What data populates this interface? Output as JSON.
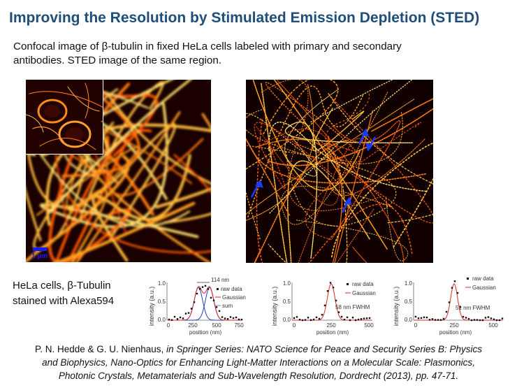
{
  "title": "Improving the Resolution by Stimulated Emission Depletion (STED)",
  "intro": {
    "line1": "Confocal image of β-tubulin in fixed HeLa cells labeled with primary and secondary",
    "line2": "antibodies. STED image of the same region."
  },
  "scale_bar_label": "1 µm",
  "caption": {
    "line1": "HeLa cells, β-Tubulin",
    "line2": "stained with Alexa594"
  },
  "plots": [
    {
      "ylabel": "intensity (a.u.)",
      "xlabel": "position (nm)",
      "xticks": [
        "0",
        "250",
        "500",
        "750"
      ],
      "yticks": [
        "0.0",
        "0.5",
        "1.0"
      ],
      "legend": [
        "raw data",
        "Gaussian",
        "sum"
      ],
      "annotation": "114 nm"
    },
    {
      "ylabel": "intensity (a.u.)",
      "xlabel": "position (nm)",
      "xticks": [
        "0",
        "250",
        "500"
      ],
      "yticks": [
        "0.0",
        "0.5",
        "1.0"
      ],
      "legend": [
        "raw data",
        "Gaussian"
      ],
      "annotation": "58 nm FWHM"
    },
    {
      "ylabel": "intensity (a.u.)",
      "xlabel": "position (nm)",
      "xticks": [
        "0",
        "250",
        "500"
      ],
      "yticks": [
        "0.0",
        "0.5",
        "1.0"
      ],
      "legend": [
        "raw data",
        "Gaussian"
      ],
      "annotation": "51 nm FWHM"
    }
  ],
  "colors": {
    "title": "#1f4e79",
    "raw": "#111111",
    "gaussian_red": "#d62728",
    "gaussian_blue": "#1f3fbf",
    "sum": "#7a7aff",
    "arrow": "#1a3cff"
  },
  "reference": {
    "authors": "P. N. Hedde & G. U. Nienhaus,",
    "line1_rest": "in Springer Series: NATO Science for Peace and Security Series B: Physics",
    "line2": "and Biophysics, Nano-Optics for Enhancing Light-Matter Interactions on a Molecular Scale: Plasmonics,",
    "line3": "Photonic Crystals, Metamaterials and Sub-Wavelength Resolution, Dordrecht (2013), pp. 47-71."
  }
}
